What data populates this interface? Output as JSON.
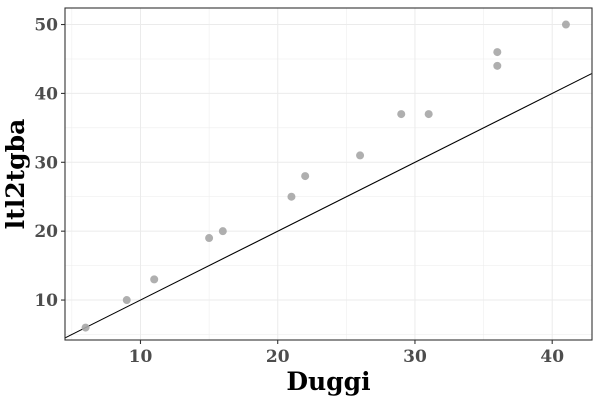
{
  "chart_data": {
    "type": "scatter",
    "xlabel": "Duggi",
    "ylabel": "ltl2tgba",
    "xlim": [
      4.5,
      42.9
    ],
    "ylim": [
      4.2,
      52.4
    ],
    "x_ticks": [
      10,
      20,
      30,
      40
    ],
    "y_ticks": [
      10,
      20,
      30,
      40,
      50
    ],
    "x_tick_labels": [
      "10",
      "20",
      "30",
      "40"
    ],
    "y_tick_labels": [
      "10",
      "20",
      "30",
      "40",
      "50"
    ],
    "grid": true,
    "reference_line": "y = x",
    "points": [
      {
        "x": 6,
        "y": 6
      },
      {
        "x": 9,
        "y": 10
      },
      {
        "x": 11,
        "y": 13
      },
      {
        "x": 15,
        "y": 19
      },
      {
        "x": 16,
        "y": 20
      },
      {
        "x": 21,
        "y": 25
      },
      {
        "x": 22,
        "y": 28
      },
      {
        "x": 26,
        "y": 31
      },
      {
        "x": 29,
        "y": 37
      },
      {
        "x": 31,
        "y": 37
      },
      {
        "x": 36,
        "y": 46
      },
      {
        "x": 36,
        "y": 44
      },
      {
        "x": 41,
        "y": 50
      }
    ],
    "colors": {
      "point": "#a6a6a6",
      "line": "#000000",
      "grid": "#ebebeb",
      "border": "#333333"
    }
  }
}
